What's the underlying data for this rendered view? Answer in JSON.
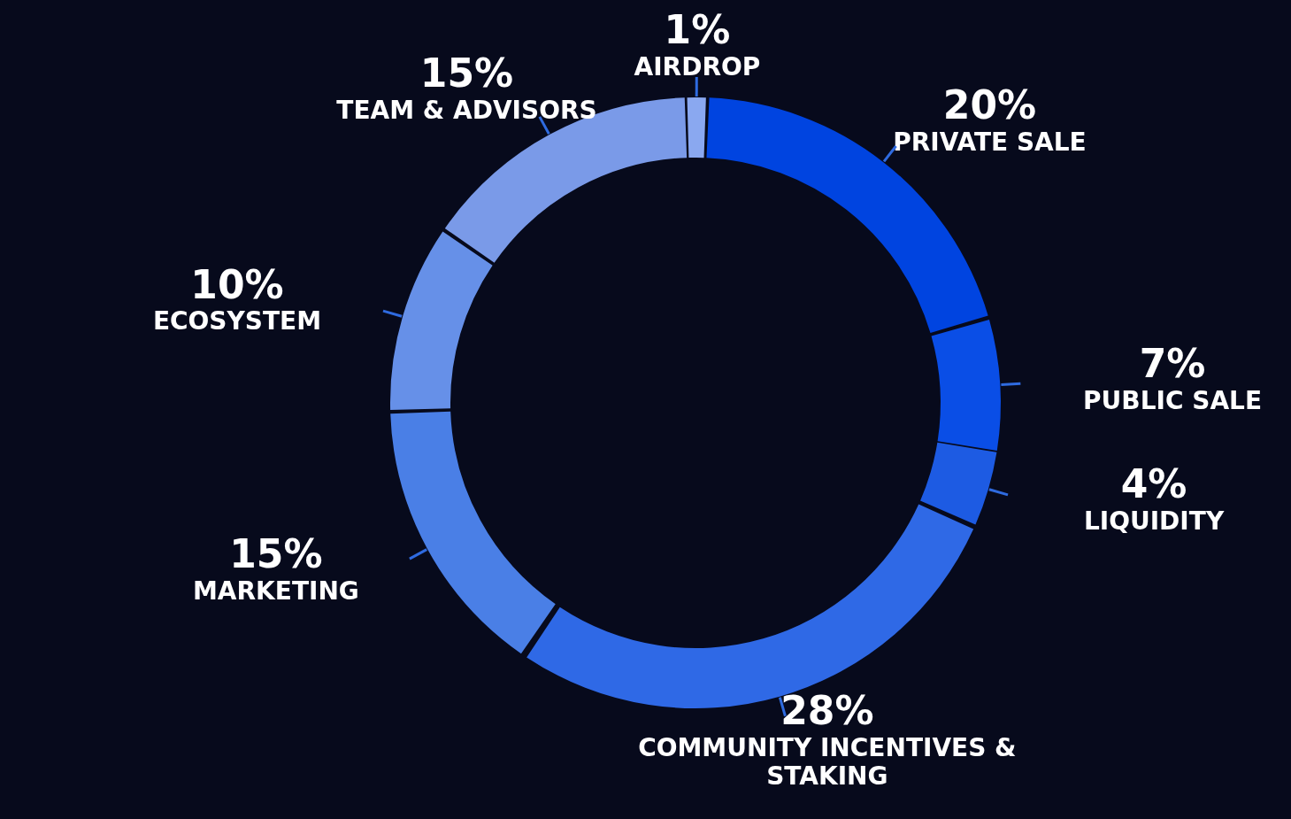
{
  "chart_data": {
    "type": "donut",
    "categories": [
      "PRIVATE SALE",
      "PUBLIC SALE",
      "LIQUIDITY",
      "COMMUNITY INCENTIVES & STAKING",
      "MARKETING",
      "ECOSYSTEM",
      "TEAM & ADVISORS",
      "AIRDROP"
    ],
    "values": [
      20,
      7,
      4,
      28,
      15,
      10,
      15,
      1
    ],
    "colors": [
      "#0044e0",
      "#0a4ee6",
      "#1d5be3",
      "#2f69e6",
      "#4a7fe6",
      "#6690e8",
      "#7a9ae8",
      "#8aa8f0"
    ],
    "value_labels": [
      "20%",
      "7%",
      "4%",
      "28%",
      "15%",
      "10%",
      "15%",
      "1%"
    ]
  }
}
